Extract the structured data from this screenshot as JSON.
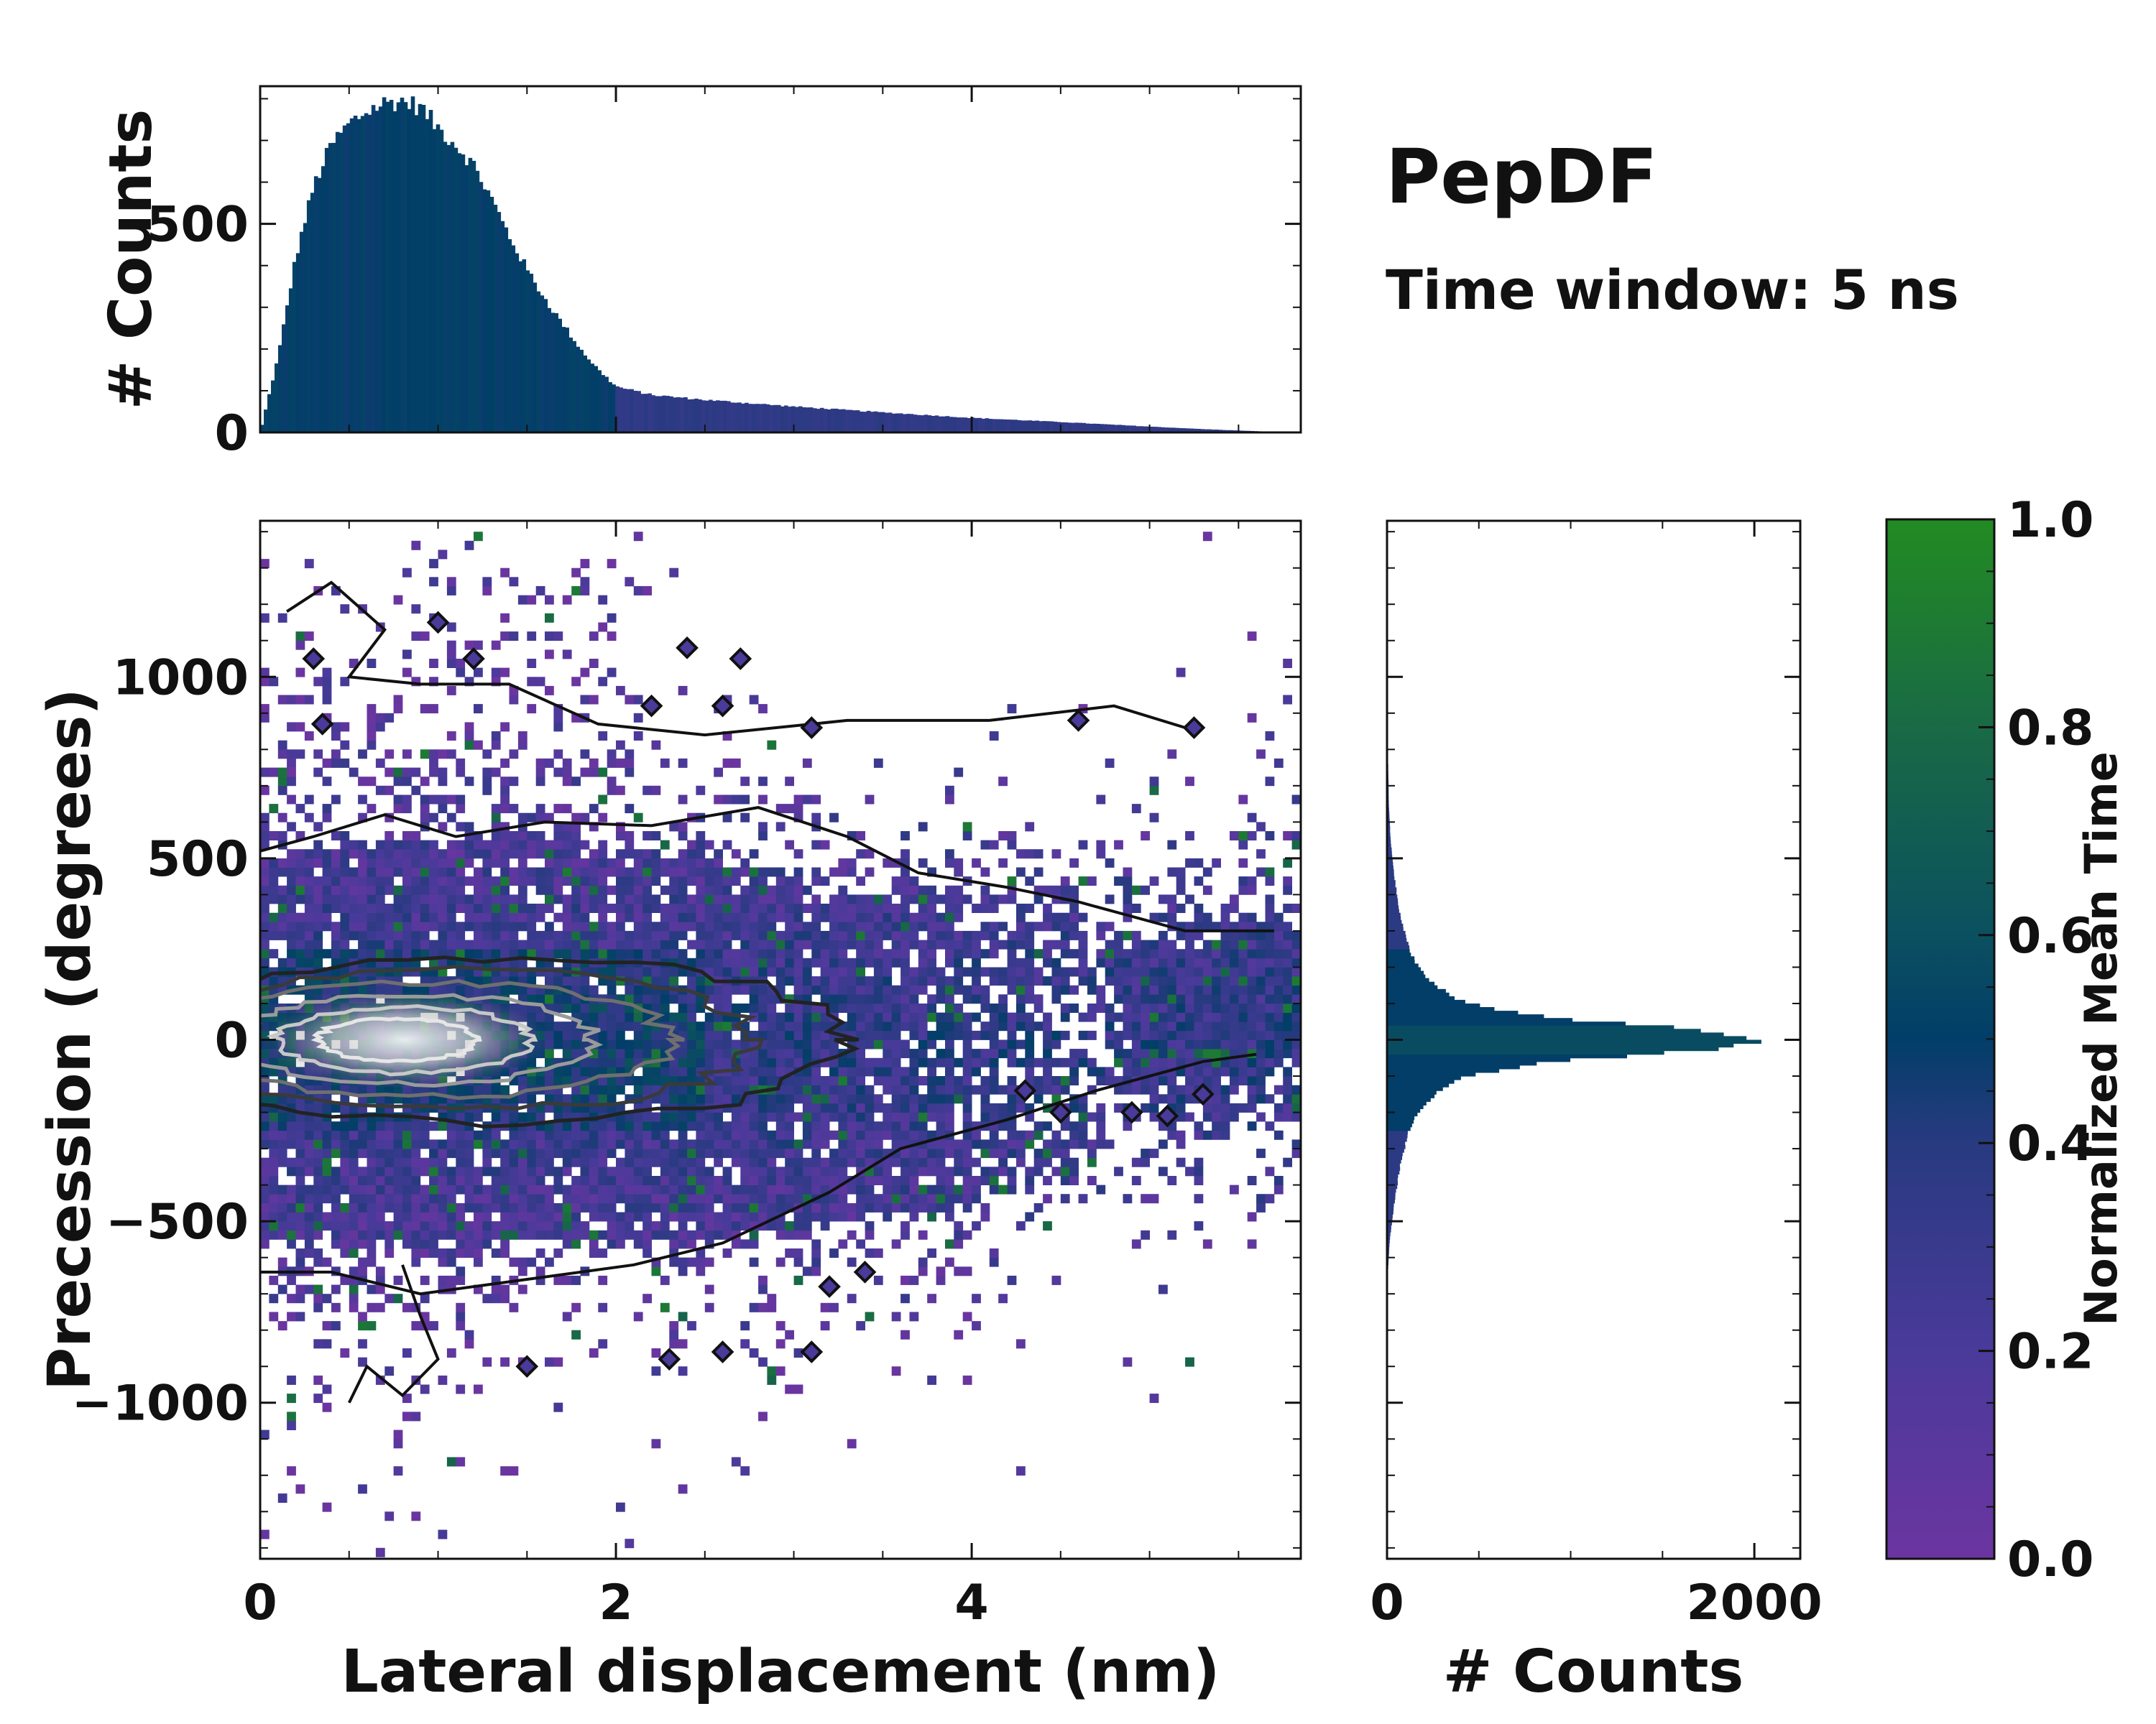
{
  "title": "PepDF",
  "subtitle": "Time window: 5 ns",
  "colors": {
    "cmap_low": "#6b35a0",
    "cmap_mid": "#023e68",
    "cmap_high": "#228b22",
    "contour": "#111111",
    "hist": "#0e4a6e"
  },
  "chart_data": [
    {
      "type": "heatmap",
      "name": "main-2d-hist",
      "xlabel": "Lateral displacement (nm)",
      "ylabel": "Precession (degrees)",
      "xlim": [
        0,
        5.85
      ],
      "ylim": [
        -1430,
        1430
      ],
      "x_ticks": [
        0,
        2,
        4
      ],
      "x_tick_labels": [
        "0",
        "2",
        "4"
      ],
      "y_ticks": [
        -1000,
        -500,
        0,
        500,
        1000
      ],
      "y_tick_labels": [
        "−1000",
        "−500",
        "0",
        "500",
        "1000"
      ],
      "peak": {
        "x": 0.85,
        "y": 0
      }
    },
    {
      "type": "bar",
      "name": "top-histogram",
      "ylabel": "# Counts",
      "xlim": [
        0,
        5.85
      ],
      "ylim": [
        0,
        830
      ],
      "y_ticks": [
        0,
        500
      ],
      "y_tick_labels": [
        "0",
        "500"
      ],
      "x": [
        0.0,
        0.1,
        0.2,
        0.3,
        0.4,
        0.5,
        0.6,
        0.7,
        0.8,
        0.9,
        1.0,
        1.1,
        1.2,
        1.3,
        1.4,
        1.5,
        1.6,
        1.7,
        1.8,
        1.9,
        2.0,
        2.2,
        2.5,
        3.0,
        3.5,
        4.0,
        4.5,
        5.0,
        5.3,
        5.6,
        5.85
      ],
      "values": [
        0,
        180,
        420,
        590,
        690,
        740,
        770,
        790,
        795,
        780,
        730,
        690,
        640,
        560,
        470,
        390,
        320,
        260,
        200,
        150,
        110,
        90,
        78,
        62,
        48,
        35,
        25,
        14,
        8,
        3,
        0
      ]
    },
    {
      "type": "bar",
      "name": "right-histogram",
      "orientation": "horizontal",
      "xlabel": "# Counts",
      "xlim": [
        0,
        2250
      ],
      "x_ticks": [
        0,
        2000
      ],
      "x_tick_labels": [
        "0",
        "2000"
      ],
      "y": [
        -650,
        -550,
        -450,
        -350,
        -250,
        -200,
        -150,
        -100,
        -60,
        -30,
        0,
        30,
        60,
        100,
        150,
        200,
        250,
        350,
        450,
        550,
        650,
        800,
        900,
        1000
      ],
      "values": [
        4,
        15,
        40,
        70,
        120,
        170,
        260,
        430,
        900,
        1700,
        2050,
        1700,
        900,
        430,
        260,
        170,
        120,
        70,
        40,
        20,
        10,
        5,
        3,
        2
      ]
    },
    {
      "type": "colorbar",
      "name": "colorbar",
      "label": "Normalized Mean Time",
      "range": [
        0,
        1
      ],
      "ticks": [
        0.0,
        0.2,
        0.4,
        0.6,
        0.8,
        1.0
      ],
      "tick_labels": [
        "0.0",
        "0.2",
        "0.4",
        "0.6",
        "0.8",
        "1.0"
      ]
    }
  ]
}
